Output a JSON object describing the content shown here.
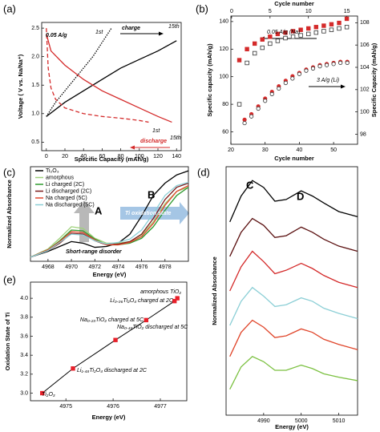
{
  "chart_data": [
    {
      "type": "line",
      "panel_label": "(a)",
      "xlabel": "Specific Capacity (mAh/g)",
      "ylabel": "Voltage ( V vs. Na/Na⁺)",
      "xlim": [
        -5,
        145
      ],
      "xticks": [
        0,
        20,
        40,
        60,
        80,
        100,
        120,
        140
      ],
      "ylim": [
        0.35,
        2.6
      ],
      "yticks": [
        0.5,
        {
          "value": 1.0,
          "label": "1.0"
        },
        1.5,
        {
          "value": 2.0,
          "label": "2.0"
        },
        2.5
      ],
      "annotations": [
        "0.05 A/g",
        "charge",
        "discharge",
        "1st",
        "15th",
        "1st",
        "15th"
      ],
      "series": [
        {
          "color": "#000000",
          "style": "dotted",
          "x": [
            0,
            10,
            20,
            30,
            40,
            50,
            60,
            70
          ],
          "values": [
            0.95,
            1.2,
            1.4,
            1.6,
            1.8,
            2.0,
            2.25,
            2.5
          ]
        },
        {
          "color": "#000000",
          "style": "solid",
          "x": [
            0,
            20,
            40,
            60,
            80,
            100,
            120,
            140
          ],
          "values": [
            0.95,
            1.2,
            1.4,
            1.6,
            1.8,
            1.95,
            2.1,
            2.28
          ]
        },
        {
          "color": "#d42a2a",
          "style": "dashed",
          "x": [
            0,
            2,
            5,
            10,
            20,
            40,
            60,
            80,
            100,
            110
          ],
          "values": [
            2.5,
            1.8,
            1.45,
            1.25,
            1.1,
            1.0,
            0.95,
            0.92,
            0.88,
            0.85
          ]
        },
        {
          "color": "#d42a2a",
          "style": "solid",
          "x": [
            0,
            5,
            20,
            40,
            60,
            80,
            100,
            120,
            135
          ],
          "values": [
            2.4,
            2.1,
            1.85,
            1.6,
            1.4,
            1.25,
            1.1,
            0.95,
            0.85
          ]
        }
      ]
    },
    {
      "type": "scatter",
      "panel_label": "(b)",
      "xlabel": "Cycle number",
      "x2label": "Cycle number",
      "ylabel": "Specific capacity (mAh/g)",
      "y2label": "Specific Capacity (mAh/g)",
      "xlim": [
        20,
        57
      ],
      "xticks": [
        20,
        30,
        40,
        50
      ],
      "x2lim": [
        -0.1,
        16.4
      ],
      "x2ticks": [
        0,
        5,
        10,
        15
      ],
      "ylim": [
        51,
        144
      ],
      "yticks": [
        60,
        80,
        100,
        120,
        140
      ],
      "y2lim": [
        97.1,
        108.6
      ],
      "y2ticks": [
        98,
        100,
        102,
        104,
        106,
        108
      ],
      "annotations": [
        "0.05 A/g (Na)",
        "3 A/g (Li)"
      ],
      "series": [
        {
          "color": "#d42a2a",
          "marker": "square",
          "filled": true,
          "xaxis": "x2",
          "x": [
            1,
            2,
            3,
            4,
            5,
            6,
            7,
            8,
            9,
            10,
            11,
            12,
            13,
            14,
            15
          ],
          "values": [
            112,
            120,
            124,
            127,
            129,
            131,
            132,
            133,
            134,
            135,
            136,
            137,
            138,
            139,
            142
          ]
        },
        {
          "color": "#333333",
          "marker": "square",
          "filled": false,
          "xaxis": "x2",
          "x": [
            1,
            2,
            3,
            4,
            5,
            6,
            7,
            8,
            9,
            10,
            11,
            12,
            13,
            14,
            15
          ],
          "values": [
            80,
            110,
            117,
            121,
            124,
            126,
            128,
            129,
            130,
            131,
            132,
            133,
            134,
            135,
            136
          ]
        },
        {
          "color": "#d42a2a",
          "marker": "circle",
          "filled": true,
          "axis": "y2",
          "x": [
            24,
            26,
            28,
            30,
            32,
            34,
            36,
            38,
            40,
            42,
            44,
            46,
            48,
            50,
            52,
            54
          ],
          "values": [
            99.3,
            99.8,
            100.5,
            101.2,
            101.8,
            102.3,
            102.8,
            103.2,
            103.5,
            103.8,
            104.0,
            104.2,
            104.3,
            104.4,
            104.5,
            104.5
          ]
        },
        {
          "color": "#333333",
          "marker": "circle",
          "filled": false,
          "axis": "y2",
          "x": [
            24,
            26,
            28,
            30,
            32,
            34,
            36,
            38,
            40,
            42,
            44,
            46,
            48,
            50,
            52,
            54
          ],
          "values": [
            99.0,
            99.6,
            100.3,
            101.0,
            101.6,
            102.1,
            102.6,
            103.0,
            103.4,
            103.7,
            103.9,
            104.1,
            104.2,
            104.3,
            104.4,
            104.4
          ]
        }
      ]
    },
    {
      "type": "line",
      "panel_label": "(c)",
      "xlabel": "Energy (eV)",
      "ylabel": "Normalized Absorbance",
      "xlim": [
        4966.5,
        4980
      ],
      "xticks": [
        4968,
        4970,
        4972,
        4974,
        4976,
        4978
      ],
      "ylim": [
        0,
        1.15
      ],
      "annotations": [
        "A",
        "B",
        "Ti oxidation state",
        "Short-range disorder"
      ],
      "series": [
        {
          "name": "Ti₂O₃",
          "color": "#000000",
          "x": [
            4966.5,
            4968,
            4969,
            4970,
            4971,
            4972,
            4973,
            4974,
            4975,
            4976,
            4977,
            4978,
            4979,
            4980
          ],
          "values": [
            0.05,
            0.12,
            0.18,
            0.24,
            0.22,
            0.17,
            0.18,
            0.22,
            0.33,
            0.55,
            0.8,
            0.95,
            1.05,
            1.1
          ]
        },
        {
          "name": "amorphous",
          "color": "#9ed17a",
          "x": [
            4966.5,
            4968,
            4969,
            4970,
            4971,
            4972,
            4973,
            4974,
            4975,
            4976,
            4977,
            4978,
            4979,
            4980
          ],
          "values": [
            0.05,
            0.15,
            0.28,
            0.42,
            0.4,
            0.28,
            0.22,
            0.22,
            0.24,
            0.32,
            0.48,
            0.7,
            0.85,
            0.9
          ]
        },
        {
          "name": "Li charged (2C)",
          "color": "#2e9a2e",
          "x": [
            4966.5,
            4968,
            4969,
            4970,
            4971,
            4972,
            4973,
            4974,
            4975,
            4976,
            4977,
            4978,
            4979,
            4980
          ],
          "values": [
            0.05,
            0.14,
            0.25,
            0.38,
            0.37,
            0.27,
            0.2,
            0.2,
            0.22,
            0.28,
            0.42,
            0.62,
            0.8,
            0.9
          ]
        },
        {
          "name": "Li discharged (2C)",
          "color": "#7a1a1a",
          "x": [
            4966.5,
            4968,
            4969,
            4970,
            4971,
            4972,
            4973,
            4974,
            4975,
            4976,
            4977,
            4978,
            4979,
            4980
          ],
          "values": [
            0.05,
            0.13,
            0.22,
            0.34,
            0.33,
            0.25,
            0.2,
            0.21,
            0.24,
            0.33,
            0.52,
            0.75,
            0.9,
            0.95
          ]
        },
        {
          "name": "Na charged (5C)",
          "color": "#e0452a",
          "x": [
            4966.5,
            4968,
            4969,
            4970,
            4971,
            4972,
            4973,
            4974,
            4975,
            4976,
            4977,
            4978,
            4979,
            4980
          ],
          "values": [
            0.05,
            0.14,
            0.24,
            0.36,
            0.35,
            0.26,
            0.2,
            0.2,
            0.23,
            0.3,
            0.46,
            0.68,
            0.85,
            0.92
          ]
        },
        {
          "name": "Na discharged (5C)",
          "color": "#8ccfd6",
          "x": [
            4966.5,
            4968,
            4969,
            4970,
            4971,
            4972,
            4973,
            4974,
            4975,
            4976,
            4977,
            4978,
            4979,
            4980
          ],
          "values": [
            0.05,
            0.13,
            0.23,
            0.33,
            0.32,
            0.25,
            0.21,
            0.23,
            0.27,
            0.38,
            0.58,
            0.8,
            0.92,
            0.96
          ]
        }
      ]
    },
    {
      "type": "line",
      "panel_label": "(d)",
      "xlabel": "Energy (eV)",
      "ylabel": "Normalized Absorbance",
      "xlim": [
        4980,
        5015
      ],
      "xticks": [
        4990,
        5000,
        5010
      ],
      "ylim": [
        0,
        7.2
      ],
      "annotations": [
        "C",
        "D"
      ],
      "series": [
        {
          "color": "#000000",
          "x": [
            4981,
            4984,
            4987,
            4990,
            4993,
            4996,
            5000,
            5003,
            5006,
            5010,
            5015
          ],
          "values": [
            5.6,
            6.35,
            6.8,
            6.6,
            6.2,
            6.25,
            6.5,
            6.35,
            6.15,
            5.9,
            5.75
          ]
        },
        {
          "color": "#5a0f0f",
          "x": [
            4981,
            4984,
            4987,
            4990,
            4993,
            4996,
            5000,
            5003,
            5006,
            5010,
            5015
          ],
          "values": [
            4.6,
            5.3,
            5.7,
            5.5,
            5.15,
            5.2,
            5.45,
            5.3,
            5.1,
            4.9,
            4.75
          ]
        },
        {
          "color": "#d42a2a",
          "x": [
            4981,
            4984,
            4987,
            4990,
            4993,
            4996,
            5000,
            5003,
            5006,
            5010,
            5015
          ],
          "values": [
            3.6,
            4.3,
            4.75,
            4.45,
            4.1,
            4.2,
            4.4,
            4.25,
            4.05,
            3.85,
            3.7
          ]
        },
        {
          "color": "#8ccfd6",
          "x": [
            4981,
            4984,
            4987,
            4990,
            4993,
            4996,
            5000,
            5003,
            5006,
            5010,
            5015
          ],
          "values": [
            2.6,
            3.3,
            3.7,
            3.45,
            3.15,
            3.2,
            3.4,
            3.3,
            3.1,
            2.95,
            2.8
          ]
        },
        {
          "color": "#e0452a",
          "x": [
            4981,
            4984,
            4987,
            4990,
            4993,
            4996,
            5000,
            5003,
            5006,
            5010,
            5015
          ],
          "values": [
            1.7,
            2.4,
            2.75,
            2.55,
            2.25,
            2.3,
            2.5,
            2.4,
            2.2,
            2.05,
            1.9
          ]
        },
        {
          "color": "#7cc142",
          "x": [
            4981,
            4984,
            4987,
            4990,
            4993,
            4996,
            5000,
            5003,
            5006,
            5010,
            5015
          ],
          "values": [
            0.75,
            1.4,
            1.7,
            1.55,
            1.3,
            1.3,
            1.45,
            1.35,
            1.2,
            1.1,
            1.0
          ]
        }
      ]
    },
    {
      "type": "scatter",
      "panel_label": "(e)",
      "xlabel": "Energy (eV)",
      "ylabel": "Oxidation State of Ti",
      "xlim": [
        4974.25,
        4977.56
      ],
      "xticks": [
        4975,
        4976,
        4977
      ],
      "ylim": [
        2.92,
        4.17
      ],
      "yticks": [
        {
          "value": 3.0,
          "label": "3.0"
        },
        3.2,
        3.4,
        3.6,
        3.8,
        {
          "value": 4.0,
          "label": "4.0"
        }
      ],
      "line": true,
      "series": [
        {
          "color": "#e8202a",
          "marker": "square",
          "filled": true,
          "x": [
            4974.5,
            4975.15,
            4976.05,
            4976.7,
            4977.3,
            4977.36
          ],
          "values": [
            3.0,
            3.26,
            3.56,
            3.77,
            3.97,
            4.0
          ],
          "point_labels": [
            "Ti₂O₃",
            "Li₁.₄₈Ti₂O₄ discharged at 2C",
            "Na₀.₄₄TiO₂ discharged at 5C",
            "Na₀.₂₃TiO₂ charged at 5C",
            "Li₀.₀₆Ti₂O₄ charged at 2C",
            "amorphous TiO₂"
          ]
        }
      ]
    }
  ]
}
